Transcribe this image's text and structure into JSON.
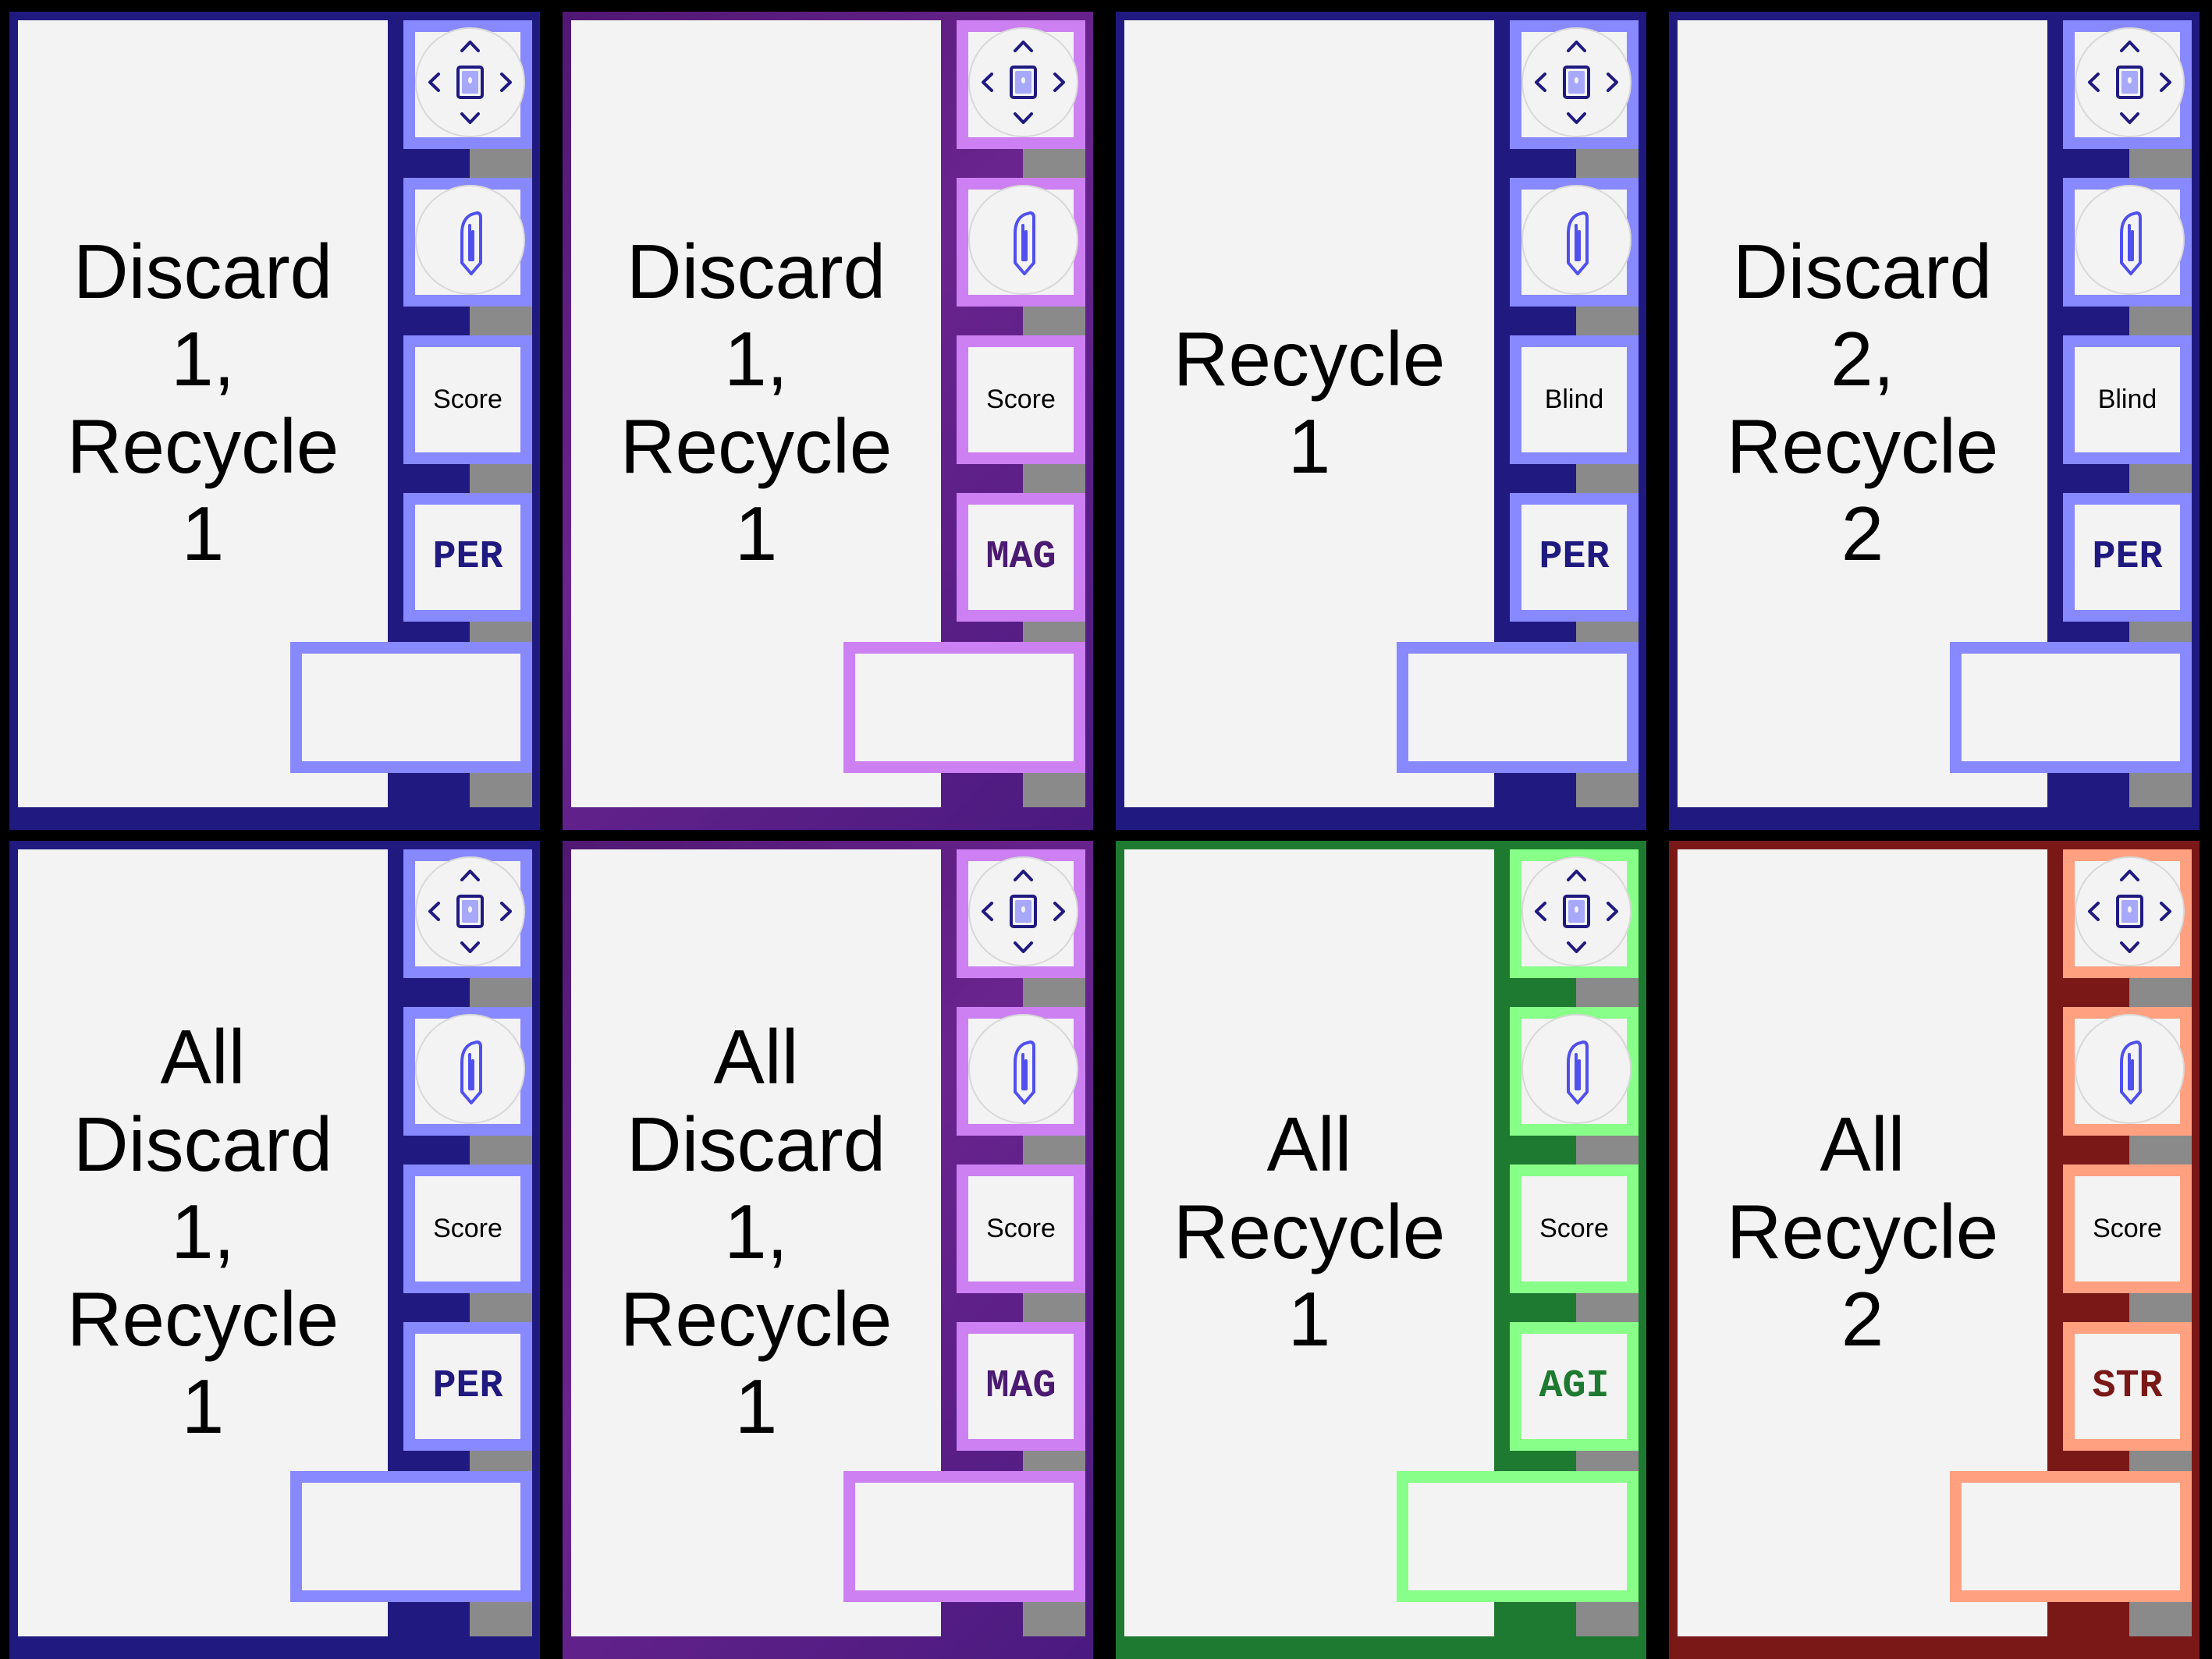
{
  "cards": [
    {
      "text": "Discard\n1,\nRecycle\n1",
      "slot3": "Score",
      "stat": "PER",
      "frame_color": "#201a80",
      "frame_gradient": "",
      "accent_color": "#8888ff",
      "stat_color": "#201a80",
      "icon_color": "#201a80",
      "icons": [
        "directional-arrows-icon",
        "paperclip-icon"
      ]
    },
    {
      "text": "Discard\n1,\nRecycle\n1",
      "slot3": "Score",
      "stat": "MAG",
      "frame_color": "#4b1a72",
      "frame_gradient": "linear-gradient(135deg, #501873 0%, #6a248e 45%, #4a1a80 100%)",
      "accent_color": "#cc80f2",
      "stat_color": "#4b1a72",
      "icon_color": "#201a80",
      "icons": [
        "directional-arrows-icon",
        "paperclip-icon"
      ]
    },
    {
      "text": "Recycle\n1",
      "slot3": "Blind",
      "stat": "PER",
      "frame_color": "#201a80",
      "frame_gradient": "",
      "accent_color": "#8888ff",
      "stat_color": "#201a80",
      "icon_color": "#201a80",
      "icons": [
        "directional-arrows-icon",
        "paperclip-icon"
      ]
    },
    {
      "text": "Discard\n2,\nRecycle\n2",
      "slot3": "Blind",
      "stat": "PER",
      "frame_color": "#201a80",
      "frame_gradient": "",
      "accent_color": "#8888ff",
      "stat_color": "#201a80",
      "icon_color": "#201a80",
      "icons": [
        "directional-arrows-icon",
        "paperclip-icon"
      ]
    },
    {
      "text": "All\nDiscard\n1,\nRecycle\n1",
      "slot3": "Score",
      "stat": "PER",
      "frame_color": "#201a80",
      "frame_gradient": "",
      "accent_color": "#8888ff",
      "stat_color": "#201a80",
      "icon_color": "#201a80",
      "icons": [
        "directional-arrows-icon",
        "paperclip-icon"
      ]
    },
    {
      "text": "All\nDiscard\n1,\nRecycle\n1",
      "slot3": "Score",
      "stat": "MAG",
      "frame_color": "#4b1a72",
      "frame_gradient": "linear-gradient(135deg, #501873 0%, #6a248e 45%, #4a1a80 100%)",
      "accent_color": "#cc80f2",
      "stat_color": "#4b1a72",
      "icon_color": "#201a80",
      "icons": [
        "directional-arrows-icon",
        "paperclip-icon"
      ]
    },
    {
      "text": "All\nRecycle\n1",
      "slot3": "Score",
      "stat": "AGI",
      "frame_color": "#1d7a30",
      "frame_gradient": "",
      "accent_color": "#88ff88",
      "stat_color": "#1d7a30",
      "icon_color": "#201a80",
      "icons": [
        "directional-arrows-icon",
        "paperclip-icon"
      ]
    },
    {
      "text": "All\nRecycle\n2",
      "slot3": "Score",
      "stat": "STR",
      "frame_color": "#7a1818",
      "frame_gradient": "",
      "accent_color": "#ffa080",
      "stat_color": "#7a1818",
      "icon_color": "#201a80",
      "icons": [
        "directional-arrows-icon",
        "paperclip-icon"
      ]
    }
  ]
}
